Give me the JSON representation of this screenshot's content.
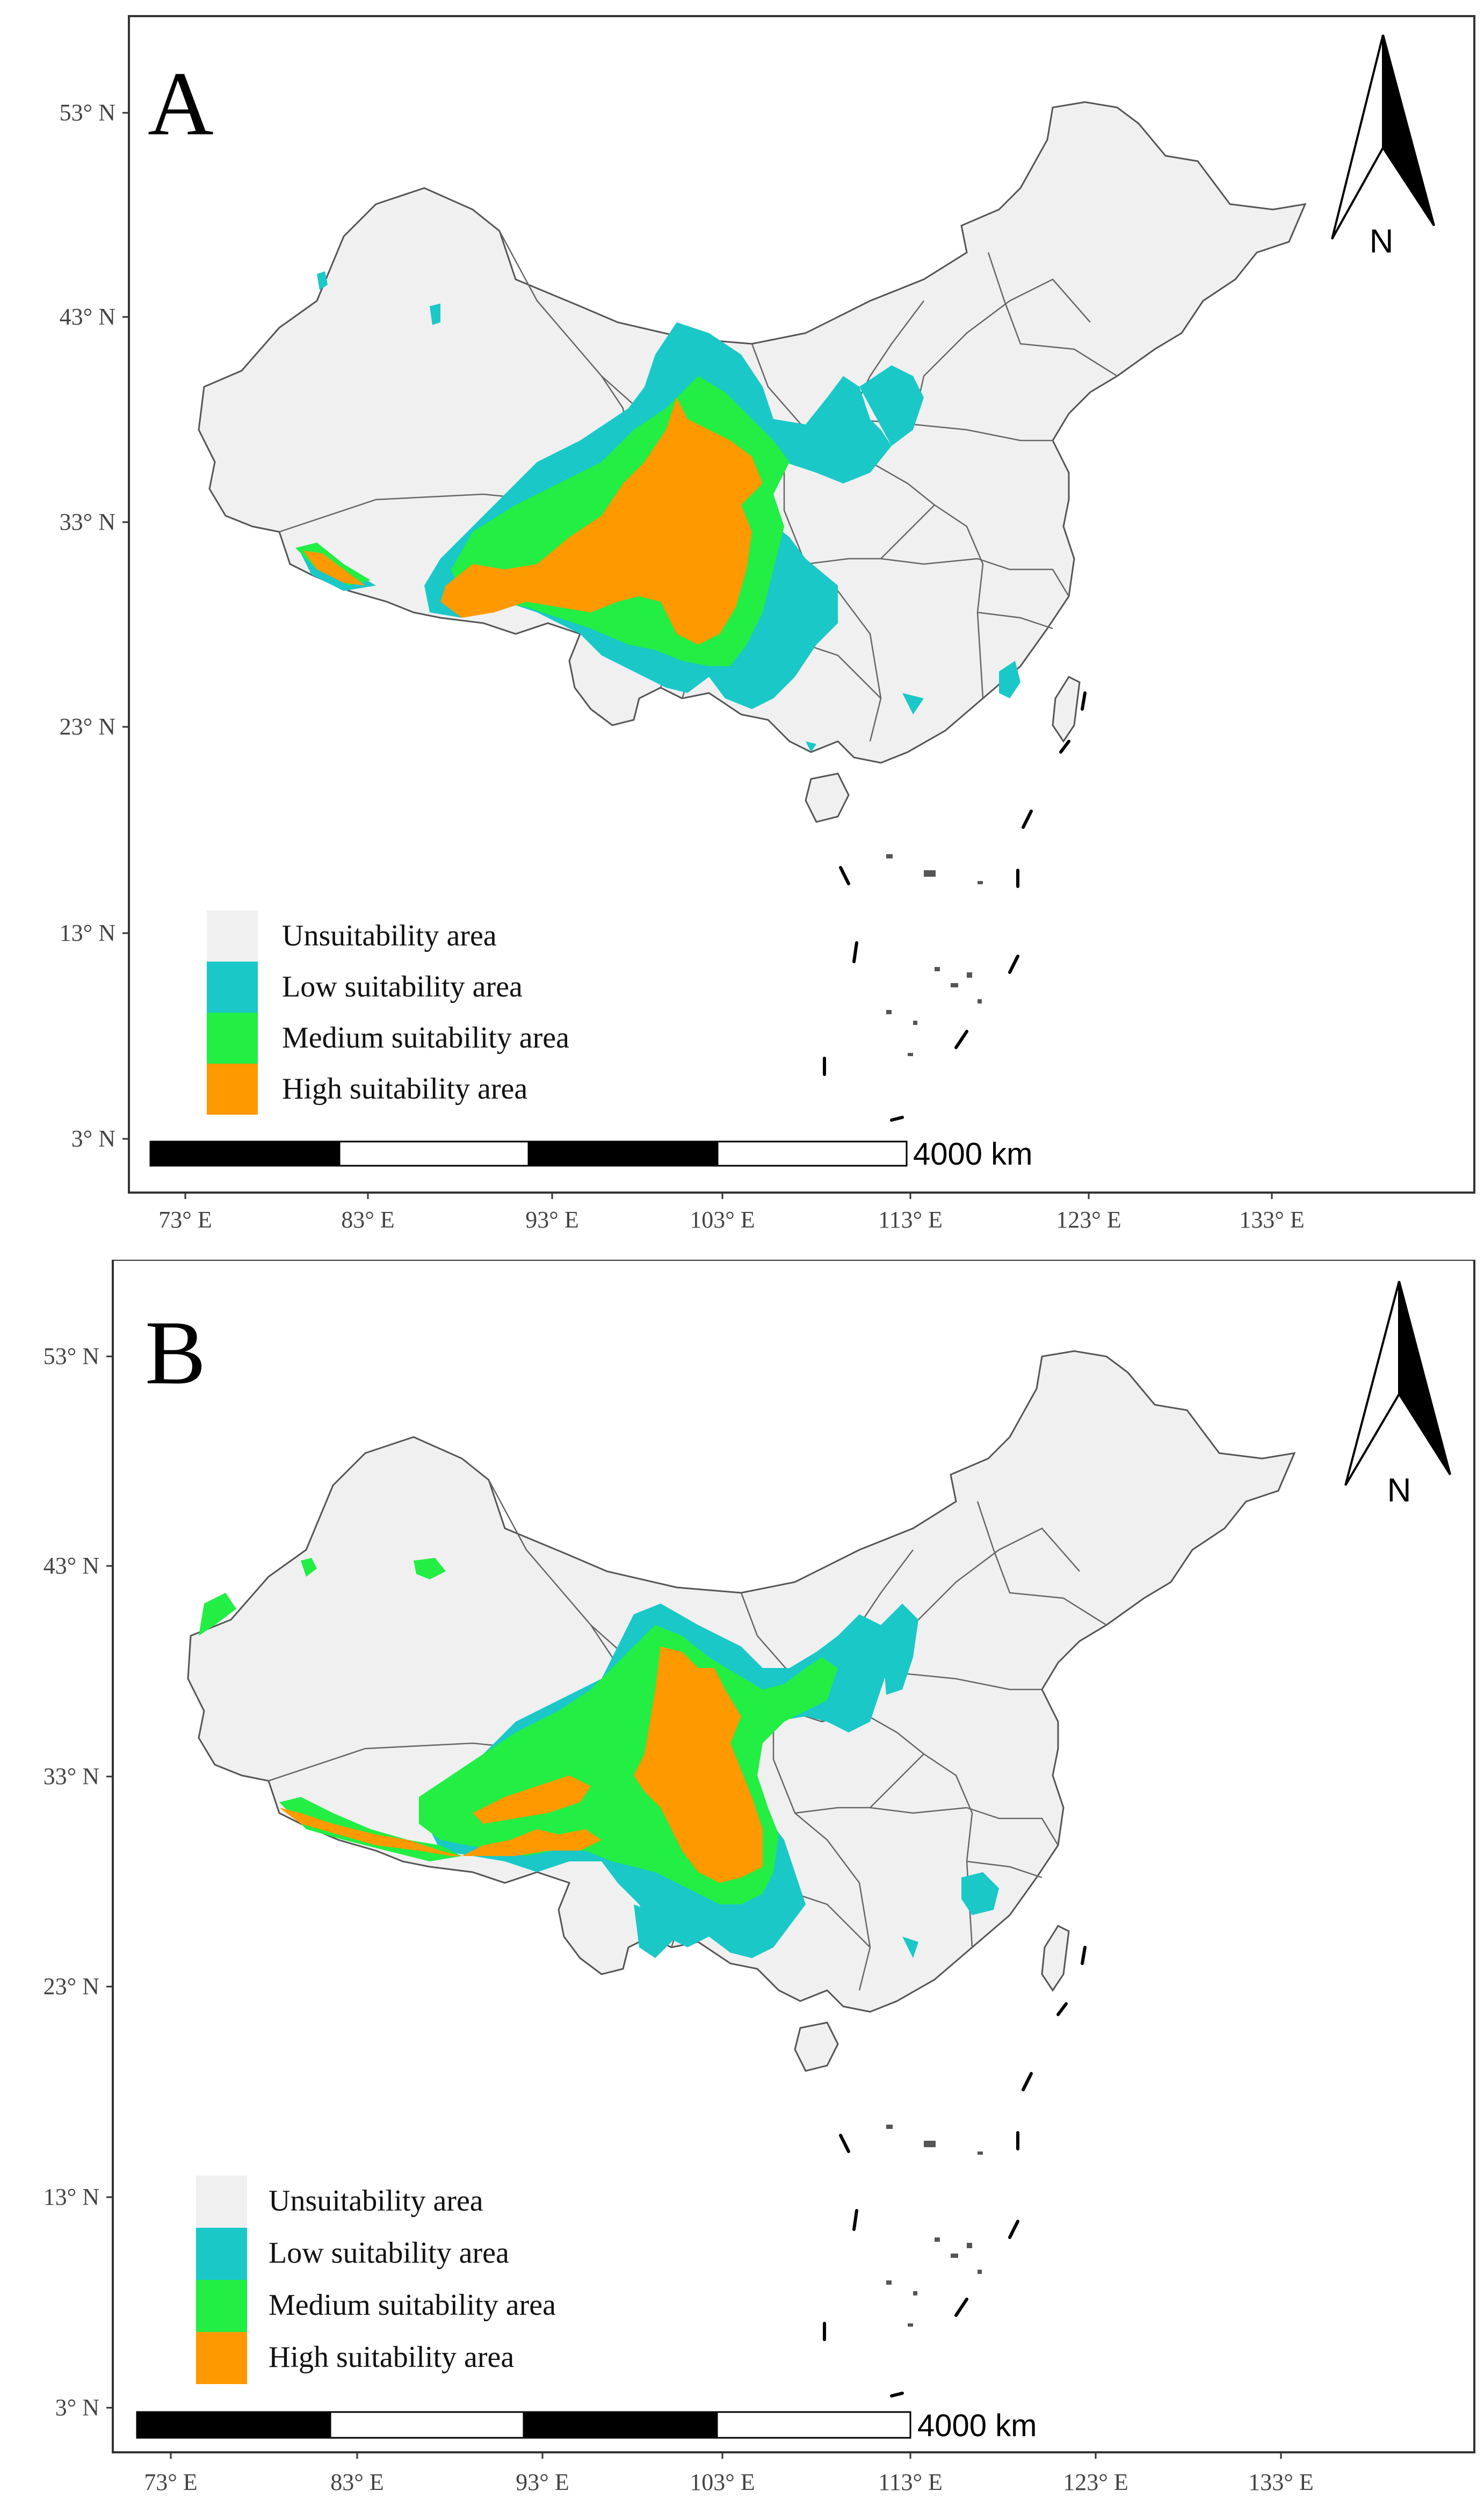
{
  "colors": {
    "unsuitable": "#f0f0f0",
    "low": "#1ac8c8",
    "medium": "#22ee44",
    "high": "#ff9900",
    "border": "#555555"
  },
  "legend": {
    "items": [
      {
        "key": "unsuitable",
        "label": "Unsuitability area"
      },
      {
        "key": "low",
        "label": "Low suitability area"
      },
      {
        "key": "medium",
        "label": "Medium suitability area"
      },
      {
        "key": "high",
        "label": "High suitability area"
      }
    ]
  },
  "axes": {
    "lat_labels": [
      "53° N",
      "43° N",
      "33° N",
      "23° N",
      "13° N",
      "3° N"
    ],
    "lon_labels": [
      "73° E",
      "83° E",
      "93° E",
      "103° E",
      "113° E",
      "123° E",
      "133° E"
    ]
  },
  "scale_bar": {
    "label": "4000 km"
  },
  "north_arrow": {
    "label": "N"
  },
  "panels": [
    {
      "id": "A",
      "label": "A"
    },
    {
      "id": "B",
      "label": "B"
    }
  ]
}
